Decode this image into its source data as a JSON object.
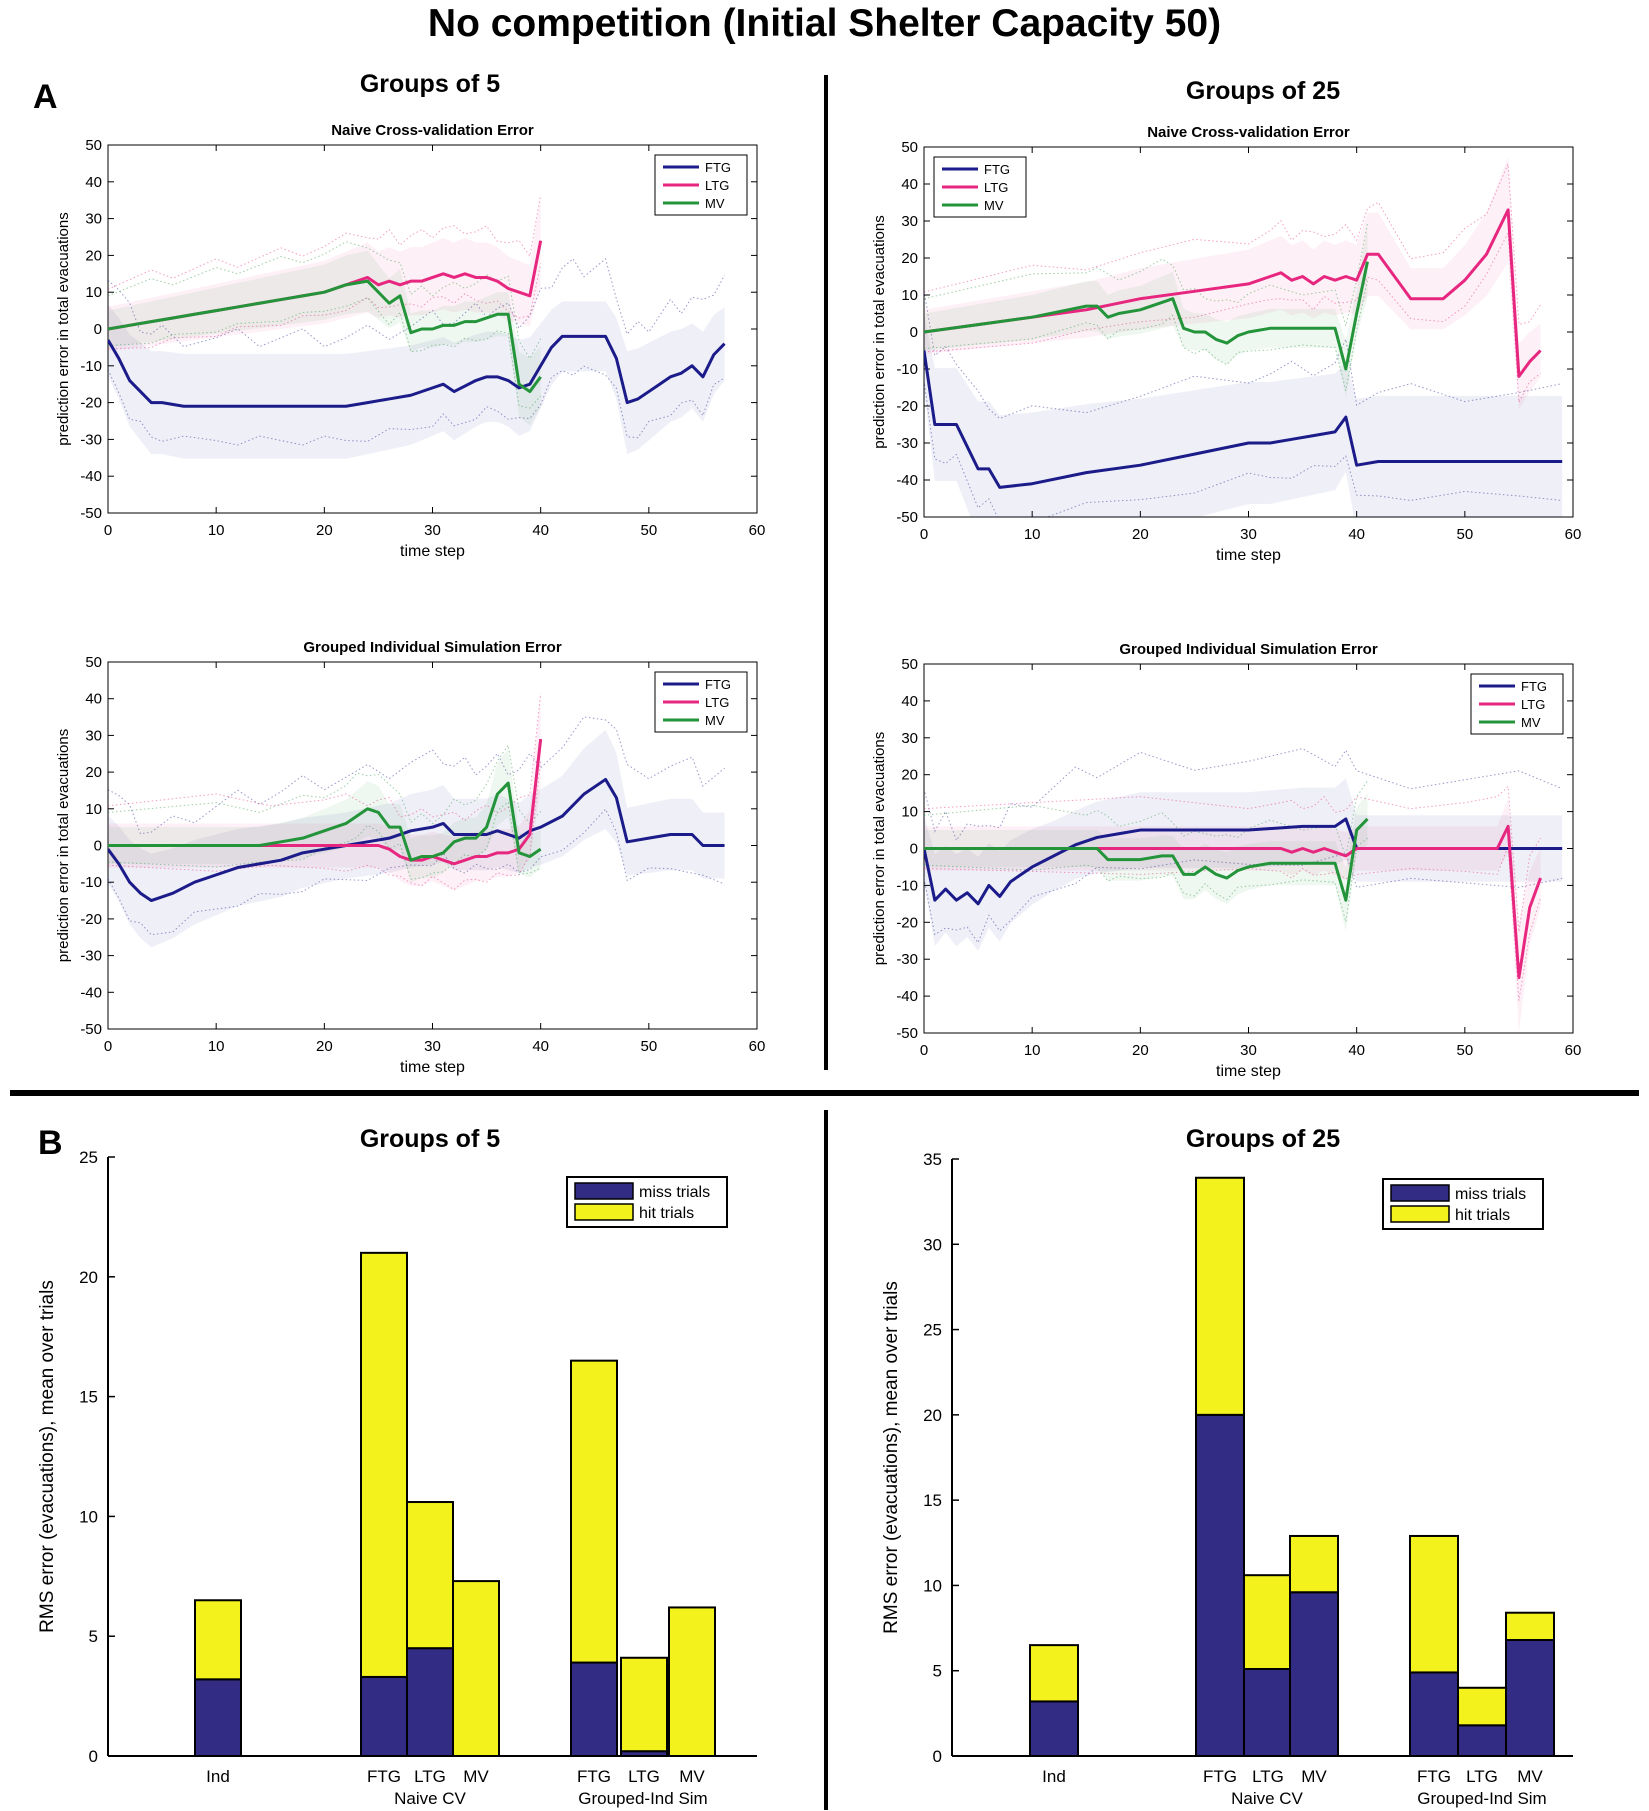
{
  "figure": {
    "title": "No competition (Initial Shelter Capacity 50)",
    "panel_a_label": "A",
    "panel_b_label": "B",
    "groups": [
      "Groups of 5",
      "Groups of 25"
    ]
  },
  "colors": {
    "FTG": "#1b1b8a",
    "LTG": "#e6267f",
    "MV": "#23943a",
    "miss": "#332c84",
    "hit": "#f4f21c"
  },
  "chart_data": [
    {
      "id": "a5_naive",
      "type": "line",
      "group": "Groups of 5",
      "title": "Naive Cross-validation Error",
      "xlabel": "time step",
      "ylabel": "prediction error in total evacuations",
      "xlim": [
        0,
        60
      ],
      "ylim": [
        -50,
        50
      ],
      "xticks": [
        0,
        10,
        20,
        30,
        40,
        50,
        60
      ],
      "yticks": [
        -50,
        -40,
        -30,
        -20,
        -10,
        0,
        10,
        20,
        30,
        40,
        50
      ],
      "legend": [
        "FTG",
        "LTG",
        "MV"
      ],
      "legend_position": "top-right",
      "series": [
        {
          "name": "FTG",
          "x": [
            0,
            1,
            2,
            3,
            4,
            5,
            7,
            10,
            12,
            14,
            16,
            18,
            20,
            22,
            24,
            26,
            28,
            30,
            31,
            32,
            34,
            35,
            36,
            37,
            38,
            39,
            40,
            41,
            42,
            43,
            44,
            45,
            46,
            47,
            48,
            49,
            50,
            51,
            52,
            53,
            54,
            55,
            56,
            57
          ],
          "y": [
            -3,
            -8,
            -14,
            -17,
            -20,
            -20,
            -21,
            -21,
            -21,
            -21,
            -21,
            -21,
            -21,
            -21,
            -20,
            -19,
            -18,
            -16,
            -15,
            -17,
            -14,
            -13,
            -13,
            -14,
            -16,
            -15,
            -10,
            -5,
            -2,
            -2,
            -2,
            -2,
            -2,
            -8,
            -20,
            -19,
            -17,
            -15,
            -13,
            -12,
            -10,
            -13,
            -7,
            -4
          ]
        },
        {
          "name": "LTG",
          "x": [
            0,
            2,
            4,
            6,
            8,
            10,
            12,
            14,
            16,
            18,
            20,
            22,
            24,
            25,
            26,
            27,
            28,
            29,
            30,
            31,
            32,
            33,
            34,
            35,
            36,
            37,
            38,
            39,
            40
          ],
          "y": [
            0,
            1,
            2,
            3,
            4,
            5,
            6,
            7,
            8,
            9,
            10,
            12,
            14,
            12,
            13,
            12,
            13,
            13,
            14,
            15,
            14,
            15,
            14,
            14,
            13,
            11,
            10,
            9,
            24
          ]
        },
        {
          "name": "MV",
          "x": [
            0,
            2,
            4,
            6,
            8,
            10,
            12,
            14,
            16,
            18,
            20,
            22,
            24,
            25,
            26,
            27,
            28,
            29,
            30,
            31,
            32,
            33,
            34,
            35,
            36,
            37,
            38,
            39,
            40
          ],
          "y": [
            0,
            1,
            2,
            3,
            4,
            5,
            6,
            7,
            8,
            9,
            10,
            12,
            13,
            10,
            7,
            9,
            -1,
            0,
            0,
            1,
            1,
            2,
            2,
            3,
            4,
            4,
            -15,
            -17,
            -13
          ]
        }
      ]
    },
    {
      "id": "a5_grouped",
      "type": "line",
      "group": "Groups of 5",
      "title": "Grouped Individual Simulation Error",
      "xlabel": "time step",
      "ylabel": "prediction error in total evacuations",
      "xlim": [
        0,
        60
      ],
      "ylim": [
        -50,
        50
      ],
      "xticks": [
        0,
        10,
        20,
        30,
        40,
        50,
        60
      ],
      "yticks": [
        -50,
        -40,
        -30,
        -20,
        -10,
        0,
        10,
        20,
        30,
        40,
        50
      ],
      "legend": [
        "FTG",
        "LTG",
        "MV"
      ],
      "legend_position": "top-right",
      "series": [
        {
          "name": "FTG",
          "x": [
            0,
            1,
            2,
            3,
            4,
            6,
            8,
            10,
            12,
            14,
            16,
            18,
            20,
            22,
            24,
            26,
            28,
            30,
            31,
            32,
            33,
            34,
            35,
            36,
            37,
            38,
            39,
            40,
            42,
            44,
            46,
            47,
            48,
            50,
            52,
            54,
            55,
            56,
            57
          ],
          "y": [
            -1,
            -5,
            -10,
            -13,
            -15,
            -13,
            -10,
            -8,
            -6,
            -5,
            -4,
            -2,
            -1,
            0,
            1,
            2,
            4,
            5,
            6,
            3,
            3,
            3,
            3,
            4,
            3,
            2,
            4,
            5,
            8,
            14,
            18,
            13,
            1,
            2,
            3,
            3,
            0,
            0,
            0
          ]
        },
        {
          "name": "LTG",
          "x": [
            0,
            5,
            10,
            15,
            20,
            22,
            24,
            25,
            26,
            27,
            28,
            29,
            30,
            31,
            32,
            33,
            34,
            35,
            36,
            37,
            38,
            39,
            40
          ],
          "y": [
            0,
            0,
            0,
            0,
            0,
            0,
            0,
            0,
            -1,
            -3,
            -4,
            -4,
            -3,
            -4,
            -5,
            -4,
            -3,
            -3,
            -2,
            -2,
            -1,
            3,
            29
          ]
        },
        {
          "name": "MV",
          "x": [
            0,
            5,
            10,
            14,
            16,
            18,
            20,
            22,
            23,
            24,
            25,
            26,
            27,
            28,
            29,
            30,
            31,
            32,
            33,
            34,
            35,
            36,
            37,
            38,
            39,
            40
          ],
          "y": [
            0,
            0,
            0,
            0,
            1,
            2,
            4,
            6,
            8,
            10,
            9,
            5,
            5,
            -4,
            -3,
            -3,
            -2,
            1,
            2,
            2,
            5,
            14,
            17,
            -2,
            -3,
            -1
          ]
        }
      ]
    },
    {
      "id": "a25_naive",
      "type": "line",
      "group": "Groups of 25",
      "title": "Naive Cross-validation Error",
      "xlabel": "time step",
      "ylabel": "prediction error in total evacuations",
      "xlim": [
        0,
        60
      ],
      "ylim": [
        -50,
        50
      ],
      "xticks": [
        0,
        10,
        20,
        30,
        40,
        50,
        60
      ],
      "yticks": [
        -50,
        -40,
        -30,
        -20,
        -10,
        0,
        10,
        20,
        30,
        40,
        50
      ],
      "legend": [
        "FTG",
        "LTG",
        "MV"
      ],
      "legend_position": "top-left",
      "series": [
        {
          "name": "FTG",
          "x": [
            0,
            1,
            2,
            3,
            4,
            5,
            6,
            7,
            10,
            15,
            20,
            25,
            30,
            32,
            34,
            36,
            38,
            39,
            40,
            42,
            45,
            50,
            55,
            59
          ],
          "y": [
            -5,
            -25,
            -25,
            -25,
            -31,
            -37,
            -37,
            -42,
            -41,
            -38,
            -36,
            -33,
            -30,
            -30,
            -29,
            -28,
            -27,
            -23,
            -36,
            -35,
            -35,
            -35,
            -35,
            -35
          ]
        },
        {
          "name": "LTG",
          "x": [
            0,
            5,
            10,
            15,
            20,
            25,
            30,
            32,
            33,
            34,
            35,
            36,
            37,
            38,
            39,
            40,
            41,
            42,
            45,
            48,
            50,
            52,
            54,
            55,
            56,
            57
          ],
          "y": [
            0,
            2,
            4,
            6,
            9,
            11,
            13,
            15,
            16,
            14,
            15,
            13,
            15,
            14,
            15,
            14,
            21,
            21,
            9,
            9,
            14,
            21,
            33,
            -12,
            -8,
            -5
          ]
        },
        {
          "name": "MV",
          "x": [
            0,
            5,
            10,
            15,
            16,
            17,
            18,
            20,
            22,
            23,
            24,
            25,
            26,
            27,
            28,
            29,
            30,
            32,
            35,
            38,
            39,
            40,
            41
          ],
          "y": [
            0,
            2,
            4,
            7,
            7,
            4,
            5,
            6,
            8,
            9,
            1,
            0,
            0,
            -2,
            -3,
            -1,
            0,
            1,
            1,
            1,
            -10,
            5,
            19
          ]
        }
      ]
    },
    {
      "id": "a25_grouped",
      "type": "line",
      "group": "Groups of 25",
      "title": "Grouped Individual Simulation Error",
      "xlabel": "time step",
      "ylabel": "prediction error in total evacuations",
      "xlim": [
        0,
        60
      ],
      "ylim": [
        -50,
        50
      ],
      "xticks": [
        0,
        10,
        20,
        30,
        40,
        50,
        60
      ],
      "yticks": [
        -50,
        -40,
        -30,
        -20,
        -10,
        0,
        10,
        20,
        30,
        40,
        50
      ],
      "legend": [
        "FTG",
        "LTG",
        "MV"
      ],
      "legend_position": "top-right",
      "series": [
        {
          "name": "FTG",
          "x": [
            0,
            1,
            2,
            3,
            4,
            5,
            6,
            7,
            8,
            10,
            12,
            14,
            16,
            18,
            20,
            25,
            30,
            35,
            38,
            39,
            40,
            45,
            50,
            55,
            59
          ],
          "y": [
            0,
            -14,
            -11,
            -14,
            -12,
            -15,
            -10,
            -13,
            -9,
            -5,
            -2,
            1,
            3,
            4,
            5,
            5,
            5,
            6,
            6,
            8,
            0,
            0,
            0,
            0,
            0
          ]
        },
        {
          "name": "LTG",
          "x": [
            0,
            10,
            20,
            30,
            33,
            34,
            35,
            36,
            37,
            38,
            39,
            40,
            45,
            50,
            53,
            54,
            55,
            56,
            57
          ],
          "y": [
            0,
            0,
            0,
            0,
            0,
            -1,
            0,
            -1,
            0,
            -1,
            -2,
            0,
            0,
            0,
            0,
            6,
            -35,
            -16,
            -8
          ]
        },
        {
          "name": "MV",
          "x": [
            0,
            5,
            10,
            15,
            16,
            17,
            18,
            20,
            22,
            23,
            24,
            25,
            26,
            27,
            28,
            29,
            30,
            32,
            35,
            38,
            39,
            40,
            41
          ],
          "y": [
            0,
            0,
            0,
            0,
            0,
            -3,
            -3,
            -3,
            -2,
            -2,
            -7,
            -7,
            -5,
            -7,
            -8,
            -6,
            -5,
            -4,
            -4,
            -4,
            -14,
            5,
            8
          ]
        }
      ]
    },
    {
      "id": "b5",
      "type": "bar",
      "stacked": true,
      "group": "Groups of 5",
      "ylabel": "RMS error (evacuations), mean over trials",
      "ylim": [
        0,
        25
      ],
      "yticks": [
        0,
        5,
        10,
        15,
        20,
        25
      ],
      "legend": [
        "miss trials",
        "hit trials"
      ],
      "legend_position": "top-right",
      "categories": [
        "Ind",
        "FTG",
        "LTG",
        "MV",
        "FTG",
        "LTG",
        "MV"
      ],
      "group_labels": [
        "Naive CV",
        "Grouped-Ind Sim"
      ],
      "series": [
        {
          "name": "miss trials",
          "values": [
            3.2,
            3.3,
            4.5,
            0,
            3.9,
            0.2,
            0
          ]
        },
        {
          "name": "hit trials",
          "values": [
            3.3,
            17.7,
            6.1,
            7.3,
            12.6,
            3.9,
            6.2
          ]
        }
      ]
    },
    {
      "id": "b25",
      "type": "bar",
      "stacked": true,
      "group": "Groups of 25",
      "ylabel": "RMS error (evacuations), mean over trials",
      "ylim": [
        0,
        35
      ],
      "yticks": [
        0,
        5,
        10,
        15,
        20,
        25,
        30,
        35
      ],
      "legend": [
        "miss trials",
        "hit trials"
      ],
      "legend_position": "top-right",
      "categories": [
        "Ind",
        "FTG",
        "LTG",
        "MV",
        "FTG",
        "LTG",
        "MV"
      ],
      "group_labels": [
        "Naive CV",
        "Grouped-Ind Sim"
      ],
      "series": [
        {
          "name": "miss trials",
          "values": [
            3.2,
            20.0,
            5.1,
            9.6,
            4.9,
            1.8,
            6.8
          ]
        },
        {
          "name": "hit trials",
          "values": [
            3.3,
            13.9,
            5.5,
            3.3,
            8.0,
            2.2,
            1.6
          ]
        }
      ]
    }
  ]
}
